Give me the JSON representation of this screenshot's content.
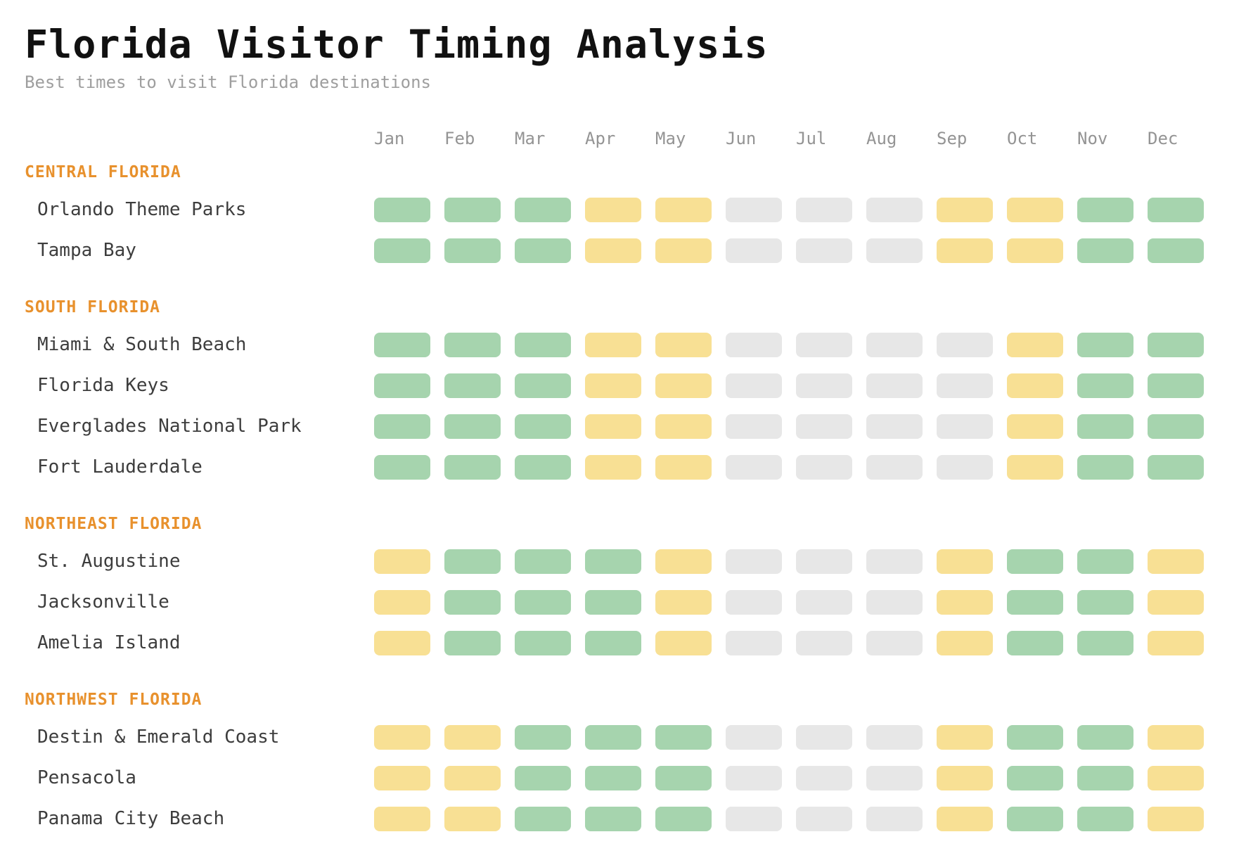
{
  "title": "Florida Visitor Timing Analysis",
  "subtitle": "Best times to visit Florida destinations",
  "chart_data": {
    "type": "heatmap",
    "months": [
      "Jan",
      "Feb",
      "Mar",
      "Apr",
      "May",
      "Jun",
      "Jul",
      "Aug",
      "Sep",
      "Oct",
      "Nov",
      "Dec"
    ],
    "cell_colors": {
      "good": "#a6d4ae",
      "moderate": "#f8e094",
      "avoid": "#e7e7e7"
    },
    "groups": [
      {
        "name": "CENTRAL FLORIDA",
        "rows": [
          {
            "label": "Orlando Theme Parks",
            "values": [
              "good",
              "good",
              "good",
              "moderate",
              "moderate",
              "avoid",
              "avoid",
              "avoid",
              "moderate",
              "moderate",
              "good",
              "good"
            ]
          },
          {
            "label": "Tampa Bay",
            "values": [
              "good",
              "good",
              "good",
              "moderate",
              "moderate",
              "avoid",
              "avoid",
              "avoid",
              "moderate",
              "moderate",
              "good",
              "good"
            ]
          }
        ]
      },
      {
        "name": "SOUTH FLORIDA",
        "rows": [
          {
            "label": "Miami & South Beach",
            "values": [
              "good",
              "good",
              "good",
              "moderate",
              "moderate",
              "avoid",
              "avoid",
              "avoid",
              "avoid",
              "moderate",
              "good",
              "good"
            ]
          },
          {
            "label": "Florida Keys",
            "values": [
              "good",
              "good",
              "good",
              "moderate",
              "moderate",
              "avoid",
              "avoid",
              "avoid",
              "avoid",
              "moderate",
              "good",
              "good"
            ]
          },
          {
            "label": "Everglades National Park",
            "values": [
              "good",
              "good",
              "good",
              "moderate",
              "moderate",
              "avoid",
              "avoid",
              "avoid",
              "avoid",
              "moderate",
              "good",
              "good"
            ]
          },
          {
            "label": "Fort Lauderdale",
            "values": [
              "good",
              "good",
              "good",
              "moderate",
              "moderate",
              "avoid",
              "avoid",
              "avoid",
              "avoid",
              "moderate",
              "good",
              "good"
            ]
          }
        ]
      },
      {
        "name": "NORTHEAST FLORIDA",
        "rows": [
          {
            "label": "St. Augustine",
            "values": [
              "moderate",
              "good",
              "good",
              "good",
              "moderate",
              "avoid",
              "avoid",
              "avoid",
              "moderate",
              "good",
              "good",
              "moderate"
            ]
          },
          {
            "label": "Jacksonville",
            "values": [
              "moderate",
              "good",
              "good",
              "good",
              "moderate",
              "avoid",
              "avoid",
              "avoid",
              "moderate",
              "good",
              "good",
              "moderate"
            ]
          },
          {
            "label": "Amelia Island",
            "values": [
              "moderate",
              "good",
              "good",
              "good",
              "moderate",
              "avoid",
              "avoid",
              "avoid",
              "moderate",
              "good",
              "good",
              "moderate"
            ]
          }
        ]
      },
      {
        "name": "NORTHWEST FLORIDA",
        "rows": [
          {
            "label": "Destin & Emerald Coast",
            "values": [
              "moderate",
              "moderate",
              "good",
              "good",
              "good",
              "avoid",
              "avoid",
              "avoid",
              "moderate",
              "good",
              "good",
              "moderate"
            ]
          },
          {
            "label": "Pensacola",
            "values": [
              "moderate",
              "moderate",
              "good",
              "good",
              "good",
              "avoid",
              "avoid",
              "avoid",
              "moderate",
              "good",
              "good",
              "moderate"
            ]
          },
          {
            "label": "Panama City Beach",
            "values": [
              "moderate",
              "moderate",
              "good",
              "good",
              "good",
              "avoid",
              "avoid",
              "avoid",
              "moderate",
              "good",
              "good",
              "moderate"
            ]
          }
        ]
      }
    ]
  },
  "text_colors": {
    "title": "#111111",
    "subtitle": "#9e9e9e",
    "month_header": "#949494",
    "region_header": "#e8912d",
    "row_label": "#3d3d3d"
  }
}
